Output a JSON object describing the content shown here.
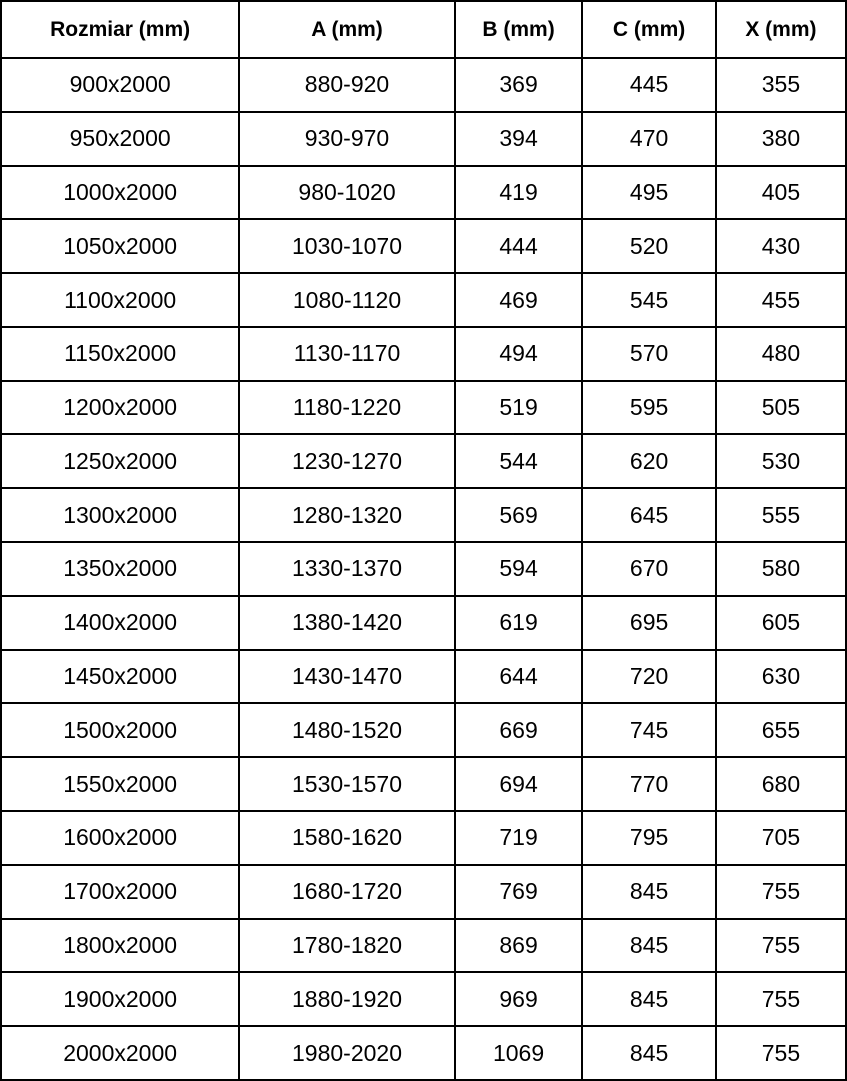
{
  "table": {
    "columns": [
      "Rozmiar (mm)",
      "A (mm)",
      "B (mm)",
      "C (mm)",
      "X (mm)"
    ],
    "rows": [
      [
        "900x2000",
        "880-920",
        "369",
        "445",
        "355"
      ],
      [
        "950x2000",
        "930-970",
        "394",
        "470",
        "380"
      ],
      [
        "1000x2000",
        "980-1020",
        "419",
        "495",
        "405"
      ],
      [
        "1050x2000",
        "1030-1070",
        "444",
        "520",
        "430"
      ],
      [
        "1100x2000",
        "1080-1120",
        "469",
        "545",
        "455"
      ],
      [
        "1150x2000",
        "1130-1170",
        "494",
        "570",
        "480"
      ],
      [
        "1200x2000",
        "1180-1220",
        "519",
        "595",
        "505"
      ],
      [
        "1250x2000",
        "1230-1270",
        "544",
        "620",
        "530"
      ],
      [
        "1300x2000",
        "1280-1320",
        "569",
        "645",
        "555"
      ],
      [
        "1350x2000",
        "1330-1370",
        "594",
        "670",
        "580"
      ],
      [
        "1400x2000",
        "1380-1420",
        "619",
        "695",
        "605"
      ],
      [
        "1450x2000",
        "1430-1470",
        "644",
        "720",
        "630"
      ],
      [
        "1500x2000",
        "1480-1520",
        "669",
        "745",
        "655"
      ],
      [
        "1550x2000",
        "1530-1570",
        "694",
        "770",
        "680"
      ],
      [
        "1600x2000",
        "1580-1620",
        "719",
        "795",
        "705"
      ],
      [
        "1700x2000",
        "1680-1720",
        "769",
        "845",
        "755"
      ],
      [
        "1800x2000",
        "1780-1820",
        "869",
        "845",
        "755"
      ],
      [
        "1900x2000",
        "1880-1920",
        "969",
        "845",
        "755"
      ],
      [
        "2000x2000",
        "1980-2020",
        "1069",
        "845",
        "755"
      ]
    ],
    "colors": {
      "border": "#000000",
      "text": "#000000",
      "background": "#ffffff"
    }
  }
}
